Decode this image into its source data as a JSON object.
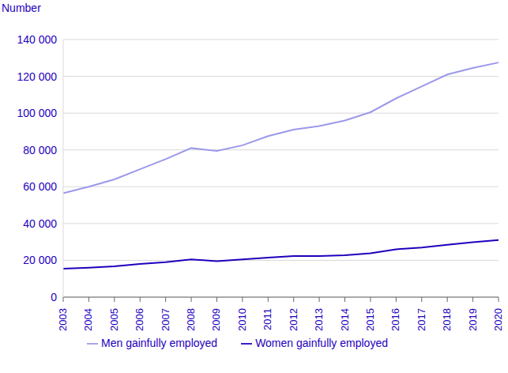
{
  "chart_data": {
    "type": "line",
    "y_label": "Number",
    "categories": [
      "2003",
      "2004",
      "2005",
      "2006",
      "2007",
      "2008",
      "2009",
      "2010",
      "2011",
      "2012",
      "2013",
      "2014",
      "2015",
      "2016",
      "2017",
      "2018",
      "2019",
      "2020"
    ],
    "series": [
      {
        "name": "Women gainfully employed",
        "color": "#1e00be",
        "values": [
          15500,
          16000,
          16800,
          18000,
          19000,
          20500,
          19500,
          20500,
          21500,
          22300,
          22300,
          22800,
          23800,
          26000,
          27000,
          28500,
          29800,
          31000
        ]
      },
      {
        "name": "Men gainfully employed",
        "color": "#9b99ea",
        "values": [
          56500,
          60000,
          64000,
          69500,
          75000,
          81000,
          79500,
          82500,
          87500,
          91000,
          93000,
          96000,
          100500,
          108000,
          114500,
          121000,
          124500,
          127500
        ]
      }
    ],
    "ylim": [
      0,
      140000
    ],
    "yticks": [
      0,
      {
        "value": 20000,
        "label": "20 000"
      },
      {
        "value": 40000,
        "label": "40 000"
      },
      {
        "value": 60000,
        "label": "60 000"
      },
      {
        "value": 80000,
        "label": "80 000"
      },
      {
        "value": 100000,
        "label": "100 000"
      },
      {
        "value": 120000,
        "label": "120 000"
      },
      {
        "value": 140000,
        "label": "140 000"
      }
    ],
    "grid": true,
    "legend": "bottom",
    "line_style": "solid",
    "marker": "none"
  }
}
